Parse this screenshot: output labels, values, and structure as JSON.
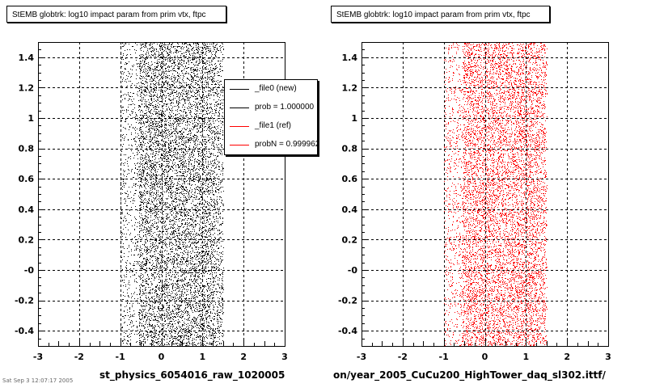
{
  "chart_data": [
    {
      "type": "scatter",
      "title": "StEMB globtrk: log10 impact param from prim vtx, ftpc",
      "xlabel": "st_physics_6054016_raw_1020005",
      "ylabel": "",
      "xlim": [
        -3,
        3
      ],
      "ylim": [
        -0.5,
        1.5
      ],
      "x_ticks": [
        "-3",
        "-2",
        "-1",
        "0",
        "1",
        "2",
        "3"
      ],
      "y_ticks": [
        "-0.4",
        "-0.2",
        "-0",
        "0.2",
        "0.4",
        "0.6",
        "0.8",
        "1",
        "1.2",
        "1.4"
      ],
      "grid": true,
      "series": [
        {
          "name": "_file0 (new)",
          "color": "#000000",
          "x_range": [
            -1.0,
            1.5
          ],
          "dense_core": [
            -0.55,
            1.3
          ],
          "y_range": [
            -0.5,
            1.5
          ]
        }
      ],
      "legend": {
        "placement": "top-right",
        "entries": [
          {
            "label": "_file0 (new)",
            "color": "#000000"
          },
          {
            "label": "prob = 1.000000",
            "color": "#000000"
          },
          {
            "label": "_file1 (ref)",
            "color": "#ff0000"
          },
          {
            "label": "probN = 0.999962",
            "color": "#ff0000"
          }
        ]
      }
    },
    {
      "type": "scatter",
      "title": "StEMB globtrk: log10 impact param from prim vtx, ftpc",
      "xlabel": "on/year_2005_CuCu200_HighTower_daq_sl302.ittf/",
      "ylabel": "",
      "xlim": [
        -3,
        3
      ],
      "ylim": [
        -0.5,
        1.5
      ],
      "x_ticks": [
        "-3",
        "-2",
        "-1",
        "0",
        "1",
        "2",
        "3"
      ],
      "y_ticks": [
        "-0.4",
        "-0.2",
        "-0",
        "0.2",
        "0.4",
        "0.6",
        "0.8",
        "1",
        "1.2",
        "1.4"
      ],
      "grid": true,
      "series": [
        {
          "name": "_file1 (ref)",
          "color": "#ff0000",
          "x_range": [
            -1.0,
            1.5
          ],
          "dense_core": [
            -0.55,
            1.3
          ],
          "y_range": [
            -0.5,
            1.5
          ]
        }
      ]
    }
  ],
  "footer": "Sat Sep  3 12:07:17 2005"
}
